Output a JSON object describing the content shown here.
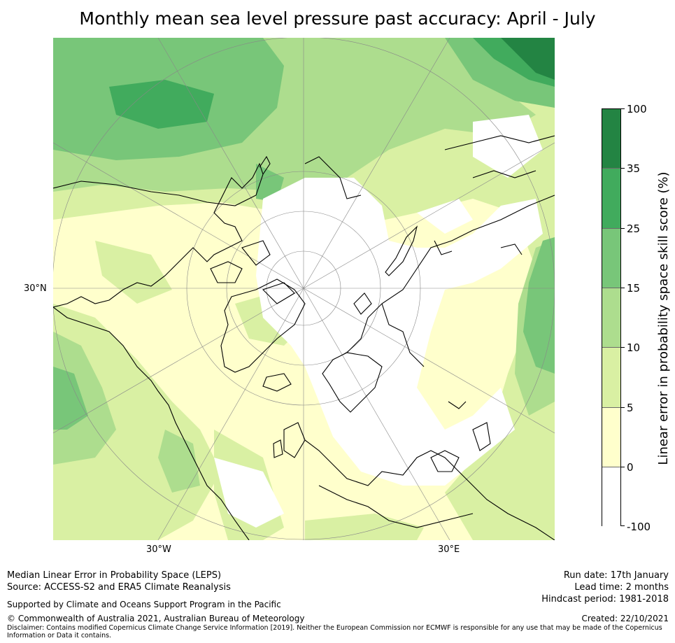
{
  "title": "Monthly mean sea level pressure past accuracy: April - July",
  "map": {
    "projection": "north-polar-stereographic",
    "lat_labels": [
      "30°N"
    ],
    "lon_labels": [
      "30°W",
      "30°E"
    ],
    "colors": {
      "below_zero": "#ffffff",
      "band_0_5": "#ffffcc",
      "band_5_10": "#d9f0a3",
      "band_10_15": "#addd8e",
      "band_15_25": "#78c679",
      "band_25_35": "#41ab5d",
      "band_35_100": "#238443",
      "coastline": "#000000",
      "gridline": "#888888"
    }
  },
  "colorbar": {
    "label": "Linear error in probability space skill score (%)",
    "ticks": [
      "100",
      "35",
      "25",
      "15",
      "10",
      "5",
      "0",
      "-100"
    ],
    "bands": [
      {
        "from": 35,
        "to": 100,
        "color": "#238443"
      },
      {
        "from": 25,
        "to": 35,
        "color": "#41ab5d"
      },
      {
        "from": 15,
        "to": 25,
        "color": "#78c679"
      },
      {
        "from": 10,
        "to": 15,
        "color": "#addd8e"
      },
      {
        "from": 5,
        "to": 10,
        "color": "#d9f0a3"
      },
      {
        "from": 0,
        "to": 5,
        "color": "#ffffcc"
      },
      {
        "from": -100,
        "to": 0,
        "color": "#ffffff"
      }
    ]
  },
  "footer": {
    "method": "Median Linear Error in Probability Space (LEPS)",
    "source": "Source: ACCESS-S2 and ERA5 Climate Reanalysis",
    "support": "Supported by Climate and Oceans Support Program in the Pacific",
    "copyright": "© Commonwealth of Australia 2021, Australian Bureau of Meteorology",
    "disclaimer": "Disclaimer: Contains modified Copernicus Climate Change Service Information [2019]. Neither the European Commission nor ECMWF is responsible for any use that may be made of the Copernicus Information or Data it contains.",
    "run_date": "Run date: 17th January",
    "lead_time": "Lead time: 2 months",
    "hindcast": "Hindcast period: 1981-2018",
    "created": "Created: 22/10/2021"
  }
}
